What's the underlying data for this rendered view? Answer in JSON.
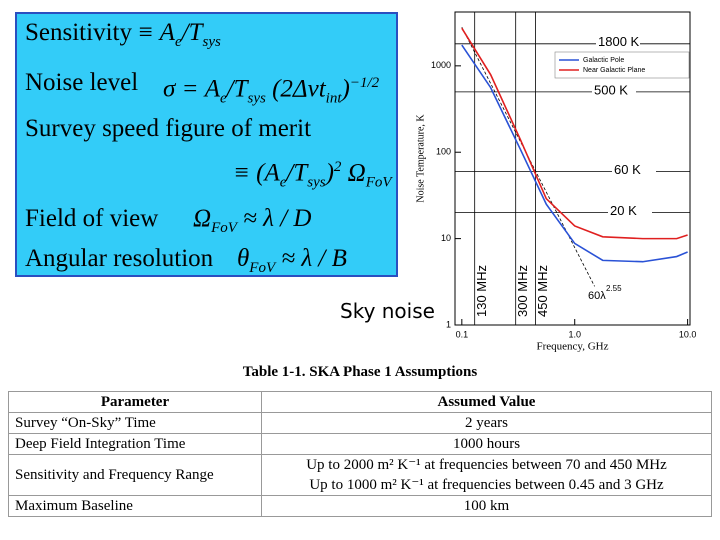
{
  "formulas": [
    {
      "label": "Sensitivity",
      "segments": [
        {
          "text": "≡ A"
        },
        {
          "text": "e",
          "style": "sub"
        },
        {
          "text": "/T"
        },
        {
          "text": "sys",
          "style": "sub"
        }
      ]
    },
    {
      "label": "Noise level",
      "segments": [
        {
          "text": "σ = A"
        },
        {
          "text": "e",
          "style": "sub"
        },
        {
          "text": "/T"
        },
        {
          "text": "sys",
          "style": "sub"
        },
        {
          "text": " (2Δνt"
        },
        {
          "text": "int",
          "style": "sub"
        },
        {
          "text": ")"
        },
        {
          "text": "−1/2",
          "style": "sup"
        }
      ]
    },
    {
      "label": "Survey speed figure of merit",
      "segments": []
    },
    {
      "segments": [
        {
          "text": "≡ (A"
        },
        {
          "text": "e",
          "style": "sub"
        },
        {
          "text": "/T"
        },
        {
          "text": "sys",
          "style": "sub"
        },
        {
          "text": ")"
        },
        {
          "text": "2",
          "style": "sup"
        },
        {
          "text": " Ω"
        },
        {
          "text": "FoV",
          "style": "sub"
        }
      ]
    },
    {
      "label": "Field of view",
      "segments": [
        {
          "text": "Ω"
        },
        {
          "text": "FoV",
          "style": "sub"
        },
        {
          "text": " ≈ λ / D"
        }
      ]
    },
    {
      "label": "Angular resolution",
      "segments": [
        {
          "text": "θ"
        },
        {
          "text": "FoV",
          "style": "sub"
        },
        {
          "text": " ≈ λ / B"
        }
      ]
    }
  ],
  "chart_data": {
    "type": "line",
    "x_label": "Frequency, GHz",
    "y_label": "Noise Temperature, K",
    "log_x": true,
    "log_y": true,
    "xlim": [
      0.087,
      10.5
    ],
    "ylim": [
      1,
      4200
    ],
    "xticks": [
      0.1,
      {
        "value": 1,
        "label": "1.0"
      },
      {
        "value": 10,
        "label": "10.0"
      }
    ],
    "yticks": [
      1,
      10,
      100,
      1000
    ],
    "legend": "upper right",
    "series": [
      {
        "name": "Galactic Pole",
        "color": "#2a52d6",
        "x": [
          0.1,
          0.18,
          0.33,
          0.56,
          1.0,
          1.77,
          4.0,
          8.0,
          10.0
        ],
        "values": [
          1740,
          560,
          108,
          25,
          8.8,
          5.6,
          5.4,
          6.2,
          7
        ]
      },
      {
        "name": "Near Galactic Plane",
        "color": "#e02020",
        "x": [
          0.1,
          0.18,
          0.33,
          0.56,
          1.0,
          1.77,
          4.0,
          8.0,
          10.0
        ],
        "values": [
          2730,
          790,
          140,
          29,
          14,
          10.5,
          10,
          10,
          11
        ]
      }
    ],
    "power_law": {
      "label": "60λ",
      "exponent": "2.55",
      "color": "#000000",
      "x": [
        0.1,
        1.5
      ],
      "values": [
        2800,
        2.8
      ]
    },
    "hlines": [
      {
        "value": 1800,
        "label": "1800 K"
      },
      {
        "value": 500,
        "label": "500 K"
      },
      {
        "value": 60,
        "label": "60 K"
      },
      {
        "value": 20,
        "label": "20 K"
      }
    ],
    "vlines": [
      {
        "value": 0.13,
        "label": "130 MHz"
      },
      {
        "value": 0.3,
        "label": "300 MHz"
      },
      {
        "value": 0.45,
        "label": "450 MHz"
      }
    ],
    "caption": "Sky noise"
  },
  "table": {
    "title": "Table 1-1.  SKA Phase 1 Assumptions",
    "header": [
      "Parameter",
      "Assumed Value"
    ],
    "rows": [
      [
        "Survey “On-Sky” Time",
        "2 years"
      ],
      [
        "Deep Field Integration Time",
        "1000 hours"
      ],
      [
        "Sensitivity and Frequency Range",
        "Up to 2000 m² K⁻¹ at frequencies between 70 and 450 MHz\nUp to 1000 m² K⁻¹ at frequencies between 0.45 and 3 GHz"
      ],
      [
        "Maximum Baseline",
        "100 km"
      ]
    ]
  }
}
